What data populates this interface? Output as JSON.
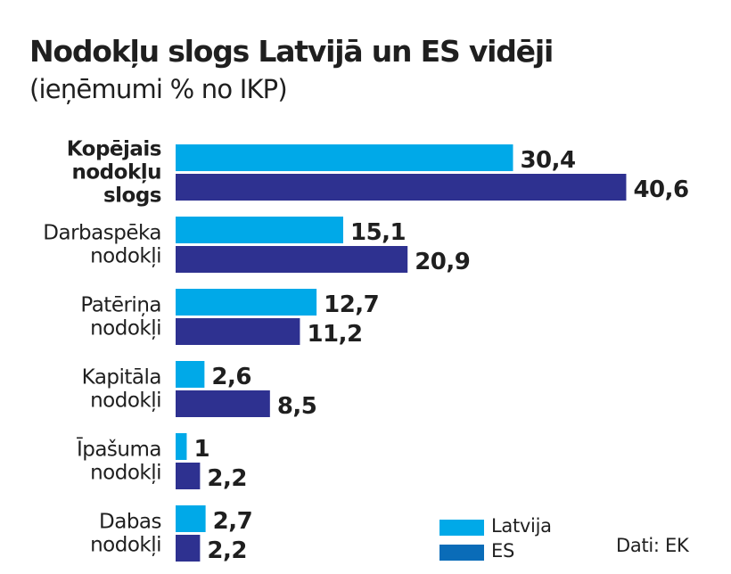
{
  "header": {
    "title": "Nodokļu slogs Latvijā un ES vidēji",
    "subtitle": "(ieņēmumi % no IKP)"
  },
  "colors": {
    "latvija": "#00a9e8",
    "es": "#2e3190",
    "es_legend": "#0a6cb8",
    "text": "#1f1f1f"
  },
  "legend": {
    "items": [
      {
        "label": "Latvija",
        "color": "#00a9e8"
      },
      {
        "label": "ES",
        "color": "#0a6cb8"
      }
    ]
  },
  "source": "Dati: EK",
  "chart_data": {
    "type": "bar",
    "orientation": "horizontal",
    "title": "Nodokļu slogs Latvijā un ES vidēji",
    "subtitle": "(ieņēmumi % no IKP)",
    "xlabel": "",
    "ylabel": "",
    "xlim": [
      0,
      45
    ],
    "grid": false,
    "legend_position": "bottom-right",
    "categories": [
      {
        "lines": [
          "Kopējais",
          "nodokļu",
          "slogs"
        ],
        "bold": true
      },
      {
        "lines": [
          "Darbaspēka",
          "nodokļi"
        ],
        "bold": false
      },
      {
        "lines": [
          "Patēriņa",
          "nodokļi"
        ],
        "bold": false
      },
      {
        "lines": [
          "Kapitāla",
          "nodokļi"
        ],
        "bold": false
      },
      {
        "lines": [
          "Īpašuma",
          "nodokļi"
        ],
        "bold": false
      },
      {
        "lines": [
          "Dabas",
          "nodokļi"
        ],
        "bold": false
      }
    ],
    "series": [
      {
        "name": "Latvija",
        "color": "#00a9e8",
        "values": [
          30.4,
          15.1,
          12.7,
          2.6,
          1,
          2.7
        ],
        "labels": [
          "30,4",
          "15,1",
          "12,7",
          "2,6",
          "1",
          "2,7"
        ]
      },
      {
        "name": "ES",
        "color": "#2e3190",
        "values": [
          40.6,
          20.9,
          11.2,
          8.5,
          2.2,
          2.2
        ],
        "labels": [
          "40,6",
          "20,9",
          "11,2",
          "8,5",
          "2,2",
          "2,2"
        ]
      }
    ]
  }
}
